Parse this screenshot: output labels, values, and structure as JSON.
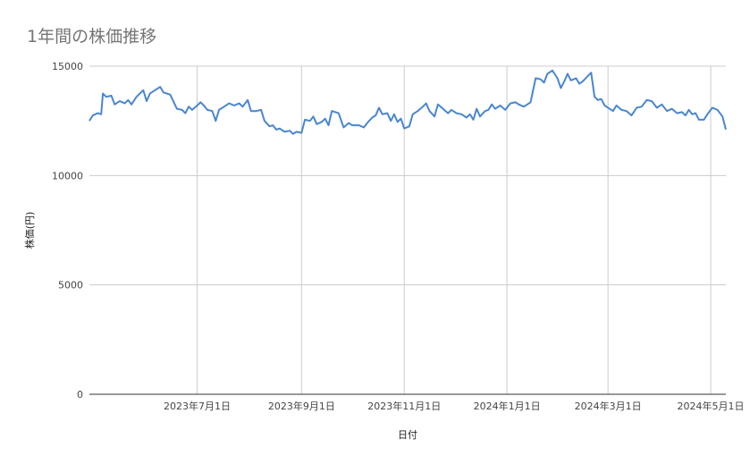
{
  "chart_data": {
    "type": "line",
    "title": "1年間の株価推移",
    "xlabel": "日付",
    "ylabel": "株価(円)",
    "ylim": [
      0,
      15000
    ],
    "xlim": [
      "2023-04-28",
      "2024-05-10"
    ],
    "y_ticks": [
      "0",
      "5000",
      "10000",
      "15000"
    ],
    "x_ticks": [
      {
        "date": "2023-07-01",
        "label": "2023年7月1日"
      },
      {
        "date": "2023-09-01",
        "label": "2023年9月1日"
      },
      {
        "date": "2023-11-01",
        "label": "2023年11月1日"
      },
      {
        "date": "2024-01-01",
        "label": "2024年1月1日"
      },
      {
        "date": "2024-03-01",
        "label": "2024年3月1日"
      },
      {
        "date": "2024-05-01",
        "label": "2024年5月1日"
      }
    ],
    "grid": true,
    "series": [
      {
        "color": "#4a86d0",
        "points": [
          [
            "2023-04-28",
            12500
          ],
          [
            "2023-04-30",
            12750
          ],
          [
            "2023-05-03",
            12850
          ],
          [
            "2023-05-05",
            12800
          ],
          [
            "2023-05-06",
            13750
          ],
          [
            "2023-05-08",
            13600
          ],
          [
            "2023-05-11",
            13650
          ],
          [
            "2023-05-13",
            13250
          ],
          [
            "2023-05-16",
            13400
          ],
          [
            "2023-05-19",
            13300
          ],
          [
            "2023-05-21",
            13450
          ],
          [
            "2023-05-23",
            13250
          ],
          [
            "2023-05-26",
            13600
          ],
          [
            "2023-05-30",
            13900
          ],
          [
            "2023-06-01",
            13400
          ],
          [
            "2023-06-03",
            13750
          ],
          [
            "2023-06-07",
            13950
          ],
          [
            "2023-06-09",
            14050
          ],
          [
            "2023-06-11",
            13800
          ],
          [
            "2023-06-15",
            13700
          ],
          [
            "2023-06-19",
            13050
          ],
          [
            "2023-06-22",
            13000
          ],
          [
            "2023-06-24",
            12850
          ],
          [
            "2023-06-26",
            13150
          ],
          [
            "2023-06-28",
            13000
          ],
          [
            "2023-07-01",
            13200
          ],
          [
            "2023-07-03",
            13350
          ],
          [
            "2023-07-05",
            13200
          ],
          [
            "2023-07-07",
            13000
          ],
          [
            "2023-07-10",
            12950
          ],
          [
            "2023-07-12",
            12500
          ],
          [
            "2023-07-14",
            13000
          ],
          [
            "2023-07-17",
            13150
          ],
          [
            "2023-07-20",
            13300
          ],
          [
            "2023-07-23",
            13200
          ],
          [
            "2023-07-26",
            13300
          ],
          [
            "2023-07-28",
            13150
          ],
          [
            "2023-07-31",
            13450
          ],
          [
            "2023-08-02",
            12950
          ],
          [
            "2023-08-05",
            12950
          ],
          [
            "2023-08-08",
            13000
          ],
          [
            "2023-08-10",
            12500
          ],
          [
            "2023-08-13",
            12250
          ],
          [
            "2023-08-15",
            12300
          ],
          [
            "2023-08-17",
            12100
          ],
          [
            "2023-08-19",
            12150
          ],
          [
            "2023-08-22",
            12000
          ],
          [
            "2023-08-25",
            12050
          ],
          [
            "2023-08-27",
            11900
          ],
          [
            "2023-08-29",
            12000
          ],
          [
            "2023-09-01",
            11950
          ],
          [
            "2023-09-03",
            12550
          ],
          [
            "2023-09-06",
            12500
          ],
          [
            "2023-09-08",
            12700
          ],
          [
            "2023-09-10",
            12350
          ],
          [
            "2023-09-13",
            12450
          ],
          [
            "2023-09-15",
            12600
          ],
          [
            "2023-09-17",
            12300
          ],
          [
            "2023-09-19",
            12950
          ],
          [
            "2023-09-23",
            12850
          ],
          [
            "2023-09-26",
            12200
          ],
          [
            "2023-09-29",
            12400
          ],
          [
            "2023-10-01",
            12300
          ],
          [
            "2023-10-05",
            12300
          ],
          [
            "2023-10-08",
            12200
          ],
          [
            "2023-10-10",
            12400
          ],
          [
            "2023-10-13",
            12650
          ],
          [
            "2023-10-15",
            12750
          ],
          [
            "2023-10-17",
            13100
          ],
          [
            "2023-10-19",
            12800
          ],
          [
            "2023-10-22",
            12850
          ],
          [
            "2023-10-24",
            12500
          ],
          [
            "2023-10-26",
            12800
          ],
          [
            "2023-10-28",
            12450
          ],
          [
            "2023-10-30",
            12600
          ],
          [
            "2023-11-01",
            12150
          ],
          [
            "2023-11-04",
            12250
          ],
          [
            "2023-11-06",
            12800
          ],
          [
            "2023-11-09",
            12950
          ],
          [
            "2023-11-12",
            13150
          ],
          [
            "2023-11-14",
            13300
          ],
          [
            "2023-11-16",
            12950
          ],
          [
            "2023-11-19",
            12700
          ],
          [
            "2023-11-21",
            13250
          ],
          [
            "2023-11-24",
            13050
          ],
          [
            "2023-11-27",
            12850
          ],
          [
            "2023-11-29",
            13000
          ],
          [
            "2023-12-02",
            12850
          ],
          [
            "2023-12-05",
            12800
          ],
          [
            "2023-12-08",
            12650
          ],
          [
            "2023-12-10",
            12800
          ],
          [
            "2023-12-12",
            12550
          ],
          [
            "2023-12-14",
            13050
          ],
          [
            "2023-12-16",
            12700
          ],
          [
            "2023-12-19",
            12950
          ],
          [
            "2023-12-21",
            13000
          ],
          [
            "2023-12-23",
            13250
          ],
          [
            "2023-12-25",
            13050
          ],
          [
            "2023-12-28",
            13200
          ],
          [
            "2023-12-31",
            13000
          ],
          [
            "2024-01-03",
            13300
          ],
          [
            "2024-01-06",
            13350
          ],
          [
            "2024-01-08",
            13250
          ],
          [
            "2024-01-11",
            13150
          ],
          [
            "2024-01-15",
            13350
          ],
          [
            "2024-01-18",
            14450
          ],
          [
            "2024-01-21",
            14400
          ],
          [
            "2024-01-23",
            14250
          ],
          [
            "2024-01-25",
            14650
          ],
          [
            "2024-01-28",
            14800
          ],
          [
            "2024-01-31",
            14450
          ],
          [
            "2024-02-02",
            14000
          ],
          [
            "2024-02-04",
            14300
          ],
          [
            "2024-02-06",
            14650
          ],
          [
            "2024-02-08",
            14350
          ],
          [
            "2024-02-11",
            14450
          ],
          [
            "2024-02-13",
            14200
          ],
          [
            "2024-02-15",
            14300
          ],
          [
            "2024-02-18",
            14550
          ],
          [
            "2024-02-20",
            14700
          ],
          [
            "2024-02-22",
            13600
          ],
          [
            "2024-02-24",
            13450
          ],
          [
            "2024-02-26",
            13500
          ],
          [
            "2024-02-28",
            13200
          ],
          [
            "2024-03-02",
            13050
          ],
          [
            "2024-03-04",
            12950
          ],
          [
            "2024-03-06",
            13200
          ],
          [
            "2024-03-09",
            13000
          ],
          [
            "2024-03-12",
            12950
          ],
          [
            "2024-03-15",
            12750
          ],
          [
            "2024-03-18",
            13100
          ],
          [
            "2024-03-21",
            13150
          ],
          [
            "2024-03-24",
            13450
          ],
          [
            "2024-03-27",
            13400
          ],
          [
            "2024-03-30",
            13100
          ],
          [
            "2024-04-02",
            13250
          ],
          [
            "2024-04-05",
            12950
          ],
          [
            "2024-04-08",
            13050
          ],
          [
            "2024-04-11",
            12850
          ],
          [
            "2024-04-14",
            12900
          ],
          [
            "2024-04-16",
            12750
          ],
          [
            "2024-04-18",
            13000
          ],
          [
            "2024-04-20",
            12800
          ],
          [
            "2024-04-22",
            12850
          ],
          [
            "2024-04-24",
            12550
          ],
          [
            "2024-04-27",
            12550
          ],
          [
            "2024-04-29",
            12800
          ],
          [
            "2024-05-02",
            13100
          ],
          [
            "2024-05-05",
            13000
          ],
          [
            "2024-05-08",
            12700
          ],
          [
            "2024-05-10",
            12100
          ]
        ]
      }
    ]
  }
}
